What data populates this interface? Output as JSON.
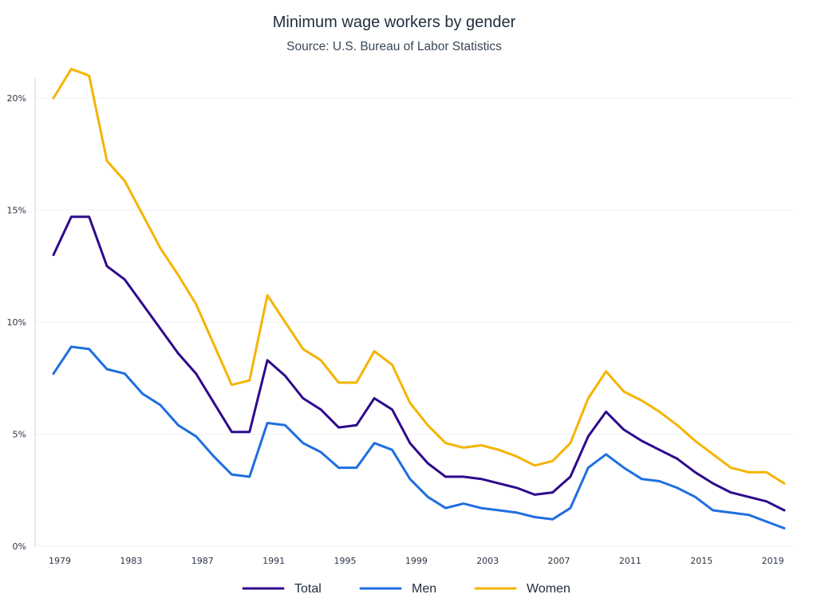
{
  "chart_data": {
    "type": "line",
    "title": "Minimum wage workers by gender",
    "subtitle": "Source: U.S. Bureau of Labor Statistics",
    "xlabel": "",
    "ylabel": "",
    "xlim": [
      1979,
      2020
    ],
    "ylim": [
      0,
      20
    ],
    "grid": true,
    "legend_position": "bottom-center",
    "x_ticks": [
      1979,
      1983,
      1987,
      1991,
      1995,
      1999,
      2003,
      2007,
      2011,
      2015,
      2019
    ],
    "y_ticks": [
      {
        "value": 0,
        "label": "0%"
      },
      {
        "value": 5,
        "label": "5%"
      },
      {
        "value": 10,
        "label": "10%"
      },
      {
        "value": 15,
        "label": "15%"
      },
      {
        "value": 20,
        "label": "20%"
      }
    ],
    "x": [
      1979,
      1980,
      1981,
      1982,
      1983,
      1984,
      1985,
      1986,
      1987,
      1988,
      1989,
      1990,
      1991,
      1992,
      1993,
      1994,
      1995,
      1996,
      1997,
      1998,
      1999,
      2000,
      2001,
      2002,
      2003,
      2004,
      2005,
      2006,
      2007,
      2008,
      2009,
      2010,
      2011,
      2012,
      2013,
      2014,
      2015,
      2016,
      2017,
      2018,
      2019,
      2020
    ],
    "series": [
      {
        "name": "Total",
        "color": "#2e0a8c",
        "values": [
          13.0,
          14.7,
          14.7,
          12.5,
          11.9,
          10.8,
          9.7,
          8.6,
          7.7,
          6.4,
          5.1,
          5.1,
          8.3,
          7.6,
          6.6,
          6.1,
          5.3,
          5.4,
          6.6,
          6.1,
          4.6,
          3.7,
          3.1,
          3.1,
          3.0,
          2.8,
          2.6,
          2.3,
          2.4,
          3.1,
          4.9,
          6.0,
          5.2,
          4.7,
          4.3,
          3.9,
          3.3,
          2.8,
          2.4,
          2.2,
          2.0,
          1.6
        ]
      },
      {
        "name": "Men",
        "color": "#1f6fe0",
        "values": [
          7.7,
          8.9,
          8.8,
          7.9,
          7.7,
          6.8,
          6.3,
          5.4,
          4.9,
          4.0,
          3.2,
          3.1,
          5.5,
          5.4,
          4.6,
          4.2,
          3.5,
          3.5,
          4.6,
          4.3,
          3.0,
          2.2,
          1.7,
          1.9,
          1.7,
          1.6,
          1.5,
          1.3,
          1.2,
          1.7,
          3.5,
          4.1,
          3.5,
          3.0,
          2.9,
          2.6,
          2.2,
          1.6,
          1.5,
          1.4,
          1.1,
          0.8
        ]
      },
      {
        "name": "Women",
        "color": "#f5b400",
        "values": [
          20.0,
          21.3,
          21.0,
          17.2,
          16.3,
          14.8,
          13.3,
          12.1,
          10.8,
          9.0,
          7.2,
          7.4,
          11.2,
          10.0,
          8.8,
          8.3,
          7.3,
          7.3,
          8.7,
          8.1,
          6.4,
          5.4,
          4.6,
          4.4,
          4.5,
          4.3,
          4.0,
          3.6,
          3.8,
          4.6,
          6.6,
          7.8,
          6.9,
          6.5,
          6.0,
          5.4,
          4.7,
          4.1,
          3.5,
          3.3,
          3.3,
          2.8
        ]
      }
    ]
  }
}
